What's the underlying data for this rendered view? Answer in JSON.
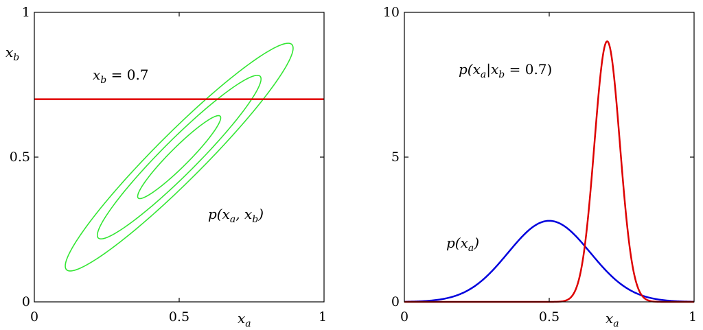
{
  "chart_data": [
    {
      "type": "line",
      "panel": "left",
      "xlabel": "x_a",
      "ylabel": "x_b",
      "xlim": [
        0,
        1
      ],
      "ylim": [
        0,
        1
      ],
      "xticks": [
        "0",
        "0.5",
        "1"
      ],
      "yticks": [
        "0",
        "0.5",
        "1"
      ],
      "grid": false,
      "contours": {
        "color": "#33e633",
        "center": [
          0.5,
          0.5
        ],
        "orientation_deg": 45,
        "levels": [
          {
            "semi_major": 0.55,
            "semi_minor": 0.082
          },
          {
            "semi_major": 0.395,
            "semi_minor": 0.06
          },
          {
            "semi_major": 0.2,
            "semi_minor": 0.033
          }
        ]
      },
      "hline": {
        "y": 0.7,
        "color": "#e00000"
      },
      "annotations": [
        {
          "text": "x_b = 0.7",
          "x": 0.2,
          "y": 0.79
        },
        {
          "text": "p(x_a, x_b)",
          "x": 0.6,
          "y": 0.3
        }
      ]
    },
    {
      "type": "line",
      "panel": "right",
      "xlabel": "x_a",
      "xlim": [
        0,
        1
      ],
      "ylim": [
        0,
        10
      ],
      "xticks": [
        "0",
        "0.5",
        "1"
      ],
      "yticks": [
        "0",
        "5",
        "10"
      ],
      "grid": false,
      "series": [
        {
          "color": "#0000dd",
          "mean": 0.5,
          "std": 0.142,
          "peak": 2.8
        },
        {
          "color": "#dd0000",
          "mean": 0.7,
          "std": 0.044,
          "peak": 9.0
        }
      ],
      "annotations": [
        {
          "text": "p(x_a | x_b = 0.7)",
          "x": 0.19,
          "y": 7.75
        },
        {
          "text": "p(x_a)",
          "x": 0.15,
          "y": 1.9
        }
      ]
    }
  ],
  "text": {
    "left_xtick_0": "0",
    "left_xtick_1": "0.5",
    "left_xtick_2": "1",
    "left_ytick_0": "0",
    "left_ytick_1": "0.5",
    "left_ytick_2": "1",
    "right_xtick_0": "0",
    "right_xtick_1": "0.5",
    "right_xtick_2": "1",
    "right_ytick_0": "0",
    "right_ytick_1": "5",
    "right_ytick_2": "10",
    "left_xlabel_main": "x",
    "left_xlabel_sub": "a",
    "left_ylabel_main": "x",
    "left_ylabel_sub": "b",
    "right_xlabel_main": "x",
    "right_xlabel_sub": "a",
    "annot_xb_main": "x",
    "annot_xb_sub": "b",
    "annot_xb_rest": " = 0.7",
    "annot_joint_p": "p(x",
    "annot_joint_sub1": "a",
    "annot_joint_mid": ", x",
    "annot_joint_sub2": "b",
    "annot_joint_end": ")",
    "annot_cond_p": "p(x",
    "annot_cond_sub1": "a",
    "annot_cond_mid": "|x",
    "annot_cond_sub2": "b",
    "annot_cond_end": " = 0.7)",
    "annot_marg_p": "p(x",
    "annot_marg_sub1": "a",
    "annot_marg_end": ")"
  }
}
